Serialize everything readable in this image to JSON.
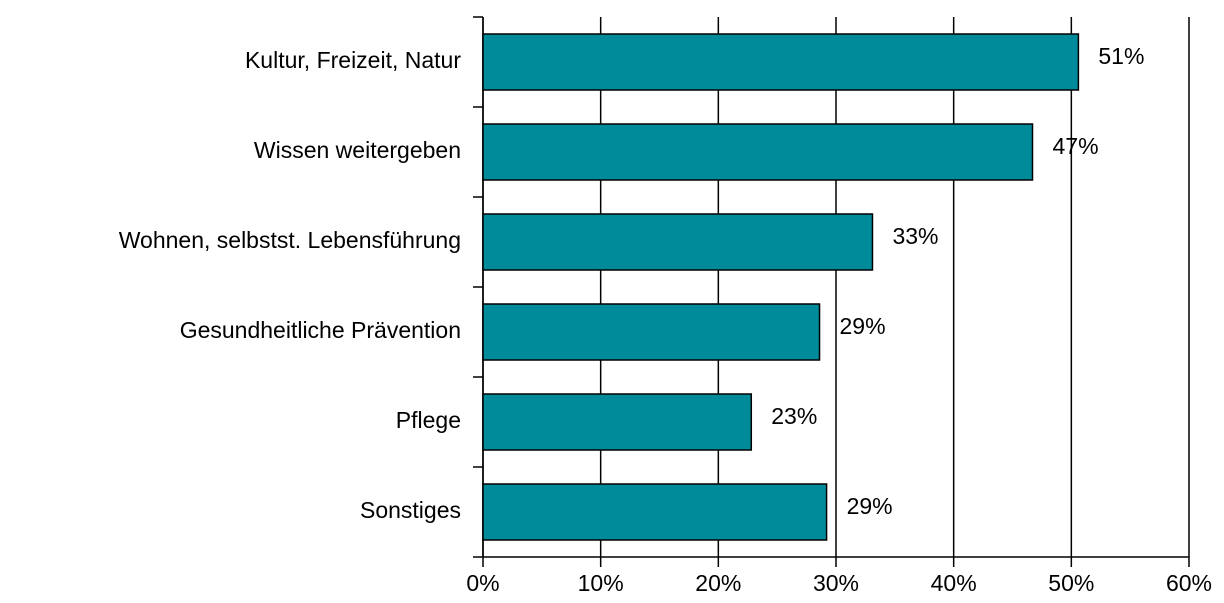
{
  "chart_data": {
    "type": "hbar",
    "categories": [
      "Kultur, Freizeit, Natur",
      "Wissen weitergeben",
      "Wohnen, selbstst. Lebensführung",
      "Gesundheitliche Prävention",
      "Pflege",
      "Sonstiges"
    ],
    "values": [
      50.6,
      46.7,
      33.1,
      28.6,
      22.8,
      29.2
    ],
    "value_labels": [
      "51%",
      "47%",
      "33%",
      "29%",
      "23%",
      "29%"
    ],
    "color": "#008b9b",
    "xlim": [
      0,
      60
    ],
    "xticks": [
      {
        "value": 0,
        "label": "0%"
      },
      {
        "value": 10,
        "label": "10%"
      },
      {
        "value": 20,
        "label": "20%"
      },
      {
        "value": 30,
        "label": "30%"
      },
      {
        "value": 40,
        "label": "40%"
      },
      {
        "value": 50,
        "label": "50%"
      },
      {
        "value": 60,
        "label": "60%"
      }
    ],
    "grid": true
  }
}
